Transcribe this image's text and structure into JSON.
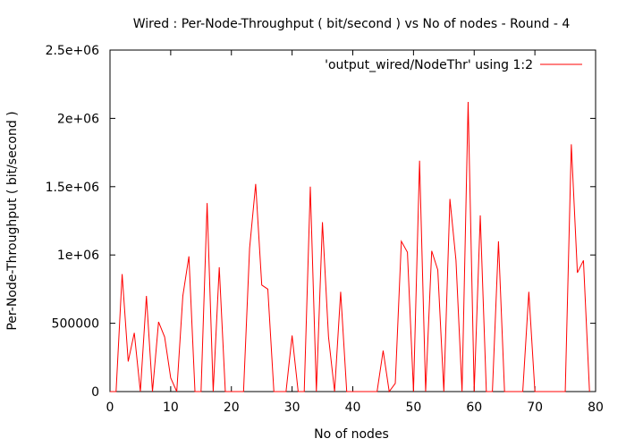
{
  "chart_data": {
    "type": "line",
    "title": "Wired : Per-Node-Throughput ( bit/second ) vs No of nodes - Round - 4",
    "xlabel": "No of nodes",
    "ylabel": "Per-Node-Throughput ( bit/second )",
    "xlim": [
      0,
      80
    ],
    "ylim": [
      0,
      2500000
    ],
    "xticks": [
      0,
      10,
      20,
      30,
      40,
      50,
      60,
      70,
      80
    ],
    "xtick_labels": [
      "0",
      "10",
      "20",
      "30",
      "40",
      "50",
      "60",
      "70",
      "80"
    ],
    "yticks": [
      0,
      500000,
      1000000,
      1500000,
      2000000,
      2500000
    ],
    "ytick_labels": [
      "0",
      "500000",
      "1e+06",
      "1.5e+06",
      "2e+06",
      "2.5e+06"
    ],
    "grid": false,
    "legend_position": "top-right",
    "series": [
      {
        "name": "'output_wired/NodeThr' using 1:2",
        "color": "#ff0000",
        "x": [
          0,
          1,
          2,
          3,
          4,
          5,
          6,
          7,
          8,
          9,
          10,
          11,
          12,
          13,
          14,
          15,
          16,
          17,
          18,
          19,
          20,
          21,
          22,
          23,
          24,
          25,
          26,
          27,
          28,
          29,
          30,
          31,
          32,
          33,
          34,
          35,
          36,
          37,
          38,
          39,
          40,
          41,
          42,
          43,
          44,
          45,
          46,
          47,
          48,
          49,
          50,
          51,
          52,
          53,
          54,
          55,
          56,
          57,
          58,
          59,
          60,
          61,
          62,
          63,
          64,
          65,
          66,
          67,
          68,
          69,
          70,
          71,
          72,
          73,
          74,
          75,
          76,
          77,
          78,
          79
        ],
        "y": [
          0,
          0,
          860000,
          220000,
          430000,
          0,
          700000,
          0,
          510000,
          400000,
          100000,
          0,
          700000,
          990000,
          0,
          0,
          1380000,
          0,
          910000,
          0,
          0,
          0,
          0,
          1050000,
          1520000,
          780000,
          750000,
          0,
          0,
          0,
          410000,
          0,
          0,
          1500000,
          0,
          1240000,
          400000,
          0,
          730000,
          0,
          0,
          0,
          0,
          0,
          0,
          300000,
          0,
          60000,
          1100000,
          1020000,
          0,
          1690000,
          0,
          1030000,
          890000,
          0,
          1410000,
          960000,
          0,
          2120000,
          0,
          1290000,
          0,
          0,
          1100000,
          0,
          0,
          0,
          0,
          730000,
          0,
          0,
          0,
          0,
          0,
          0,
          1810000,
          870000,
          960000,
          0
        ]
      }
    ]
  }
}
